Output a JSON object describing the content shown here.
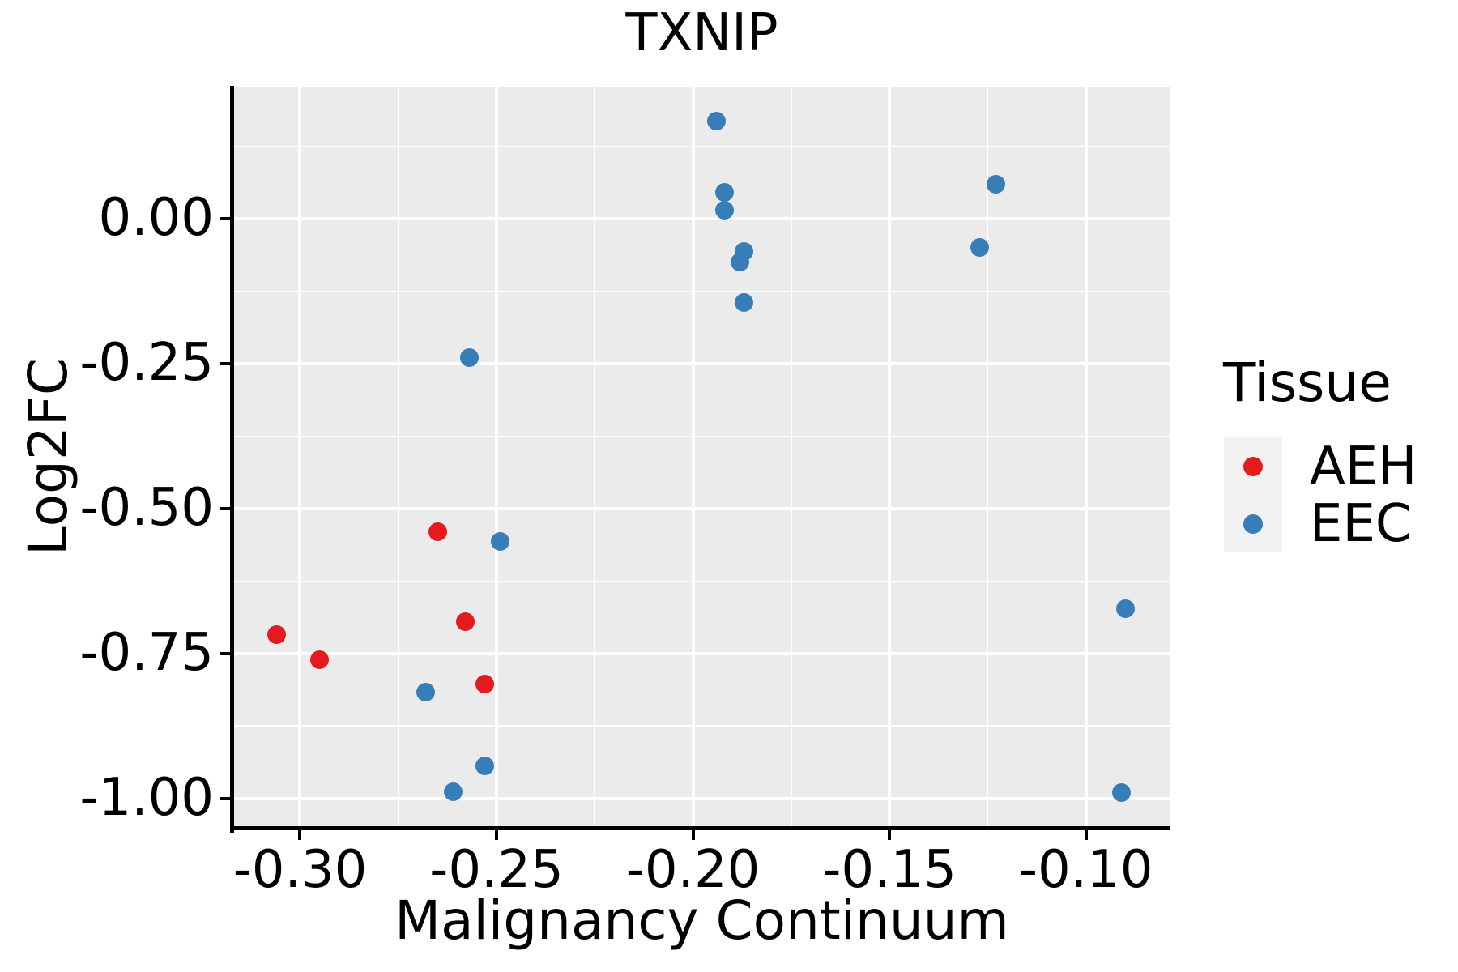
{
  "title": "TXNIP",
  "axes": {
    "x": {
      "label": "Malignancy Continuum",
      "domain": [
        -0.3168,
        -0.0787
      ],
      "major_ticks": [
        -0.3,
        -0.25,
        -0.2,
        -0.15,
        -0.1
      ],
      "tick_labels": [
        "-0.30",
        "-0.25",
        "-0.20",
        "-0.15",
        "-0.10"
      ],
      "minor_ticks": [
        -0.275,
        -0.225,
        -0.175,
        -0.125
      ]
    },
    "y": {
      "label": "Log2FC",
      "domain": [
        -1.0475,
        0.2263
      ],
      "major_ticks": [
        0.0,
        -0.25,
        -0.5,
        -0.75,
        -1.0
      ],
      "tick_labels": [
        "0.00",
        "-0.25",
        "-0.50",
        "-0.75",
        "-1.00"
      ],
      "minor_ticks": [
        0.125,
        -0.125,
        -0.375,
        -0.625,
        -0.875
      ]
    }
  },
  "legend": {
    "title": "Tissue",
    "entries": [
      {
        "label": "AEH",
        "color": "#E41A1C"
      },
      {
        "label": "EEC",
        "color": "#377EB8"
      }
    ]
  },
  "colors": {
    "panel_background": "#EBEBEB",
    "gridline": "#FFFFFF",
    "legend_key_background": "#F2F2F2",
    "axis": "#000000",
    "aeh": "#E41A1C",
    "eec": "#377EB8"
  },
  "chart_data": {
    "type": "scatter",
    "title": "TXNIP",
    "xlabel": "Malignancy Continuum",
    "ylabel": "Log2FC",
    "xlim": [
      -0.3168,
      -0.0787
    ],
    "ylim": [
      -1.0475,
      0.2263
    ],
    "grid": "major-and-minor",
    "legend_position": "right",
    "series": [
      {
        "name": "AEH",
        "color": "#E41A1C",
        "points": [
          [
            -0.265,
            -0.54
          ],
          [
            -0.306,
            -0.717
          ],
          [
            -0.295,
            -0.76
          ],
          [
            -0.258,
            -0.695
          ],
          [
            -0.253,
            -0.802
          ]
        ]
      },
      {
        "name": "EEC",
        "color": "#377EB8",
        "points": [
          [
            -0.194,
            0.169
          ],
          [
            -0.192,
            0.046
          ],
          [
            -0.192,
            0.015
          ],
          [
            -0.187,
            -0.056
          ],
          [
            -0.188,
            -0.075
          ],
          [
            -0.187,
            -0.144
          ],
          [
            -0.123,
            0.06
          ],
          [
            -0.127,
            -0.05
          ],
          [
            -0.09,
            -0.672
          ],
          [
            -0.091,
            -0.99
          ],
          [
            -0.257,
            -0.24
          ],
          [
            -0.249,
            -0.556
          ],
          [
            -0.268,
            -0.817
          ],
          [
            -0.253,
            -0.943
          ],
          [
            -0.261,
            -0.988
          ]
        ]
      }
    ]
  }
}
